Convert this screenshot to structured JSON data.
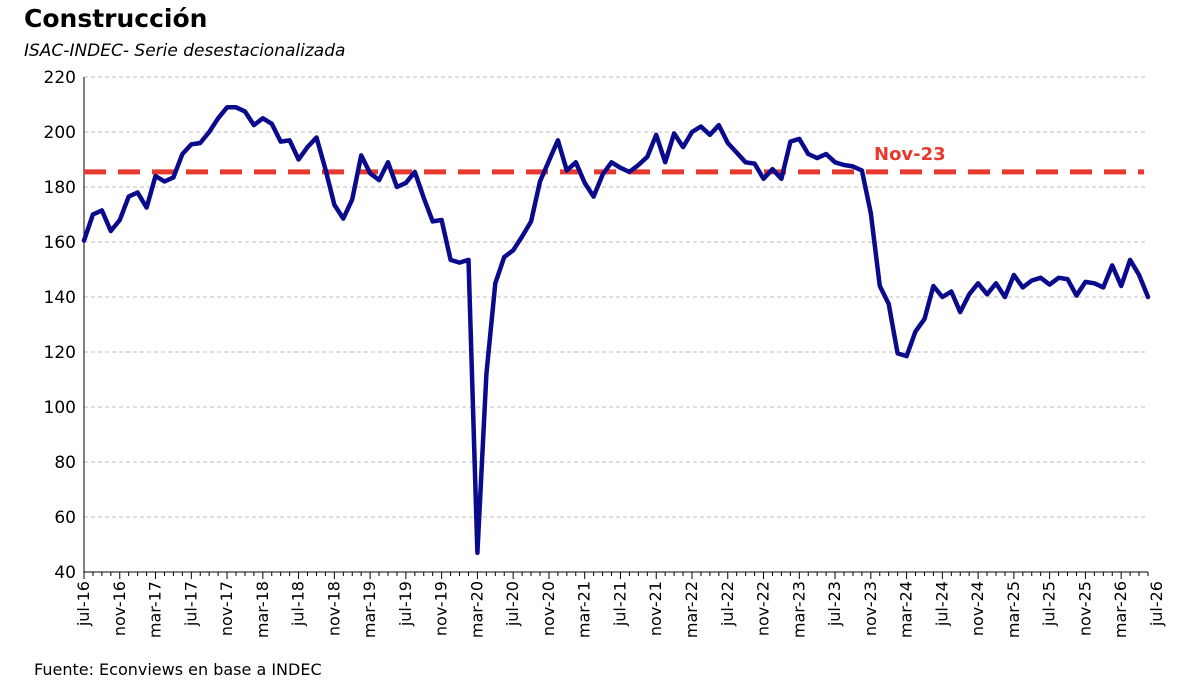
{
  "chart_data": {
    "type": "line",
    "title": "Construcción",
    "subtitle": "ISAC-INDEC- Serie desestacionalizada",
    "source": "Fuente: Econviews en base a INDEC",
    "ylim": [
      40,
      220
    ],
    "yticks": [
      40,
      60,
      80,
      100,
      120,
      140,
      160,
      180,
      200,
      220
    ],
    "grid": "horizontal dashed",
    "xtick_labels": [
      "jul-16",
      "nov-16",
      "mar-17",
      "jul-17",
      "nov-17",
      "mar-18",
      "jul-18",
      "nov-18",
      "mar-19",
      "jul-19",
      "nov-19",
      "mar-20",
      "jul-20",
      "nov-20",
      "mar-21",
      "jul-21",
      "nov-21",
      "mar-22",
      "jul-22",
      "nov-22",
      "mar-23",
      "jul-23",
      "nov-23",
      "mar-24",
      "jul-24",
      "nov-24",
      "mar-25",
      "jul-25",
      "nov-25",
      "mar-26",
      "jul-26"
    ],
    "reference_line": {
      "label": "Nov-23",
      "value": 185.5,
      "color": "#e8392f"
    },
    "series": [
      {
        "color": "#0a0a8c",
        "start": "jul-16",
        "values": [
          160.5,
          170.0,
          171.5,
          164.0,
          168.0,
          176.5,
          178.0,
          172.5,
          184.0,
          182.0,
          183.5,
          192.0,
          195.5,
          196.0,
          200.0,
          205.0,
          209.0,
          209.0,
          207.5,
          202.5,
          205.0,
          203.0,
          196.5,
          197.0,
          190.0,
          194.5,
          198.0,
          186.5,
          173.5,
          168.5,
          175.5,
          191.5,
          185.0,
          182.5,
          189.0,
          180.0,
          181.5,
          185.5,
          176.0,
          167.5,
          168.0,
          153.5,
          152.5,
          153.5,
          47.0,
          112.0,
          145.0,
          154.5,
          157.0,
          162.0,
          167.5,
          182.0,
          189.5,
          197.0,
          186.0,
          189.0,
          181.5,
          176.5,
          184.5,
          189.0,
          187.0,
          185.5,
          188.0,
          191.0,
          199.0,
          189.0,
          199.5,
          194.5,
          200.0,
          202.0,
          199.0,
          202.5,
          196.0,
          192.5,
          189.0,
          188.5,
          183.0,
          186.5,
          183.0,
          196.5,
          197.5,
          192.0,
          190.5,
          192.0,
          189.0,
          188.0,
          187.5,
          186.0,
          170.5,
          144.0,
          137.5,
          119.5,
          118.5,
          127.5,
          132.0,
          144.0,
          140.0,
          142.0,
          134.5,
          141.0,
          145.0,
          141.0,
          145.0,
          140.0,
          148.0,
          143.5,
          146.0,
          147.0,
          144.5,
          147.0,
          146.5,
          140.5,
          145.5,
          145.0,
          143.5,
          151.5,
          144.0,
          153.5,
          148.0,
          140.0
        ]
      }
    ]
  }
}
